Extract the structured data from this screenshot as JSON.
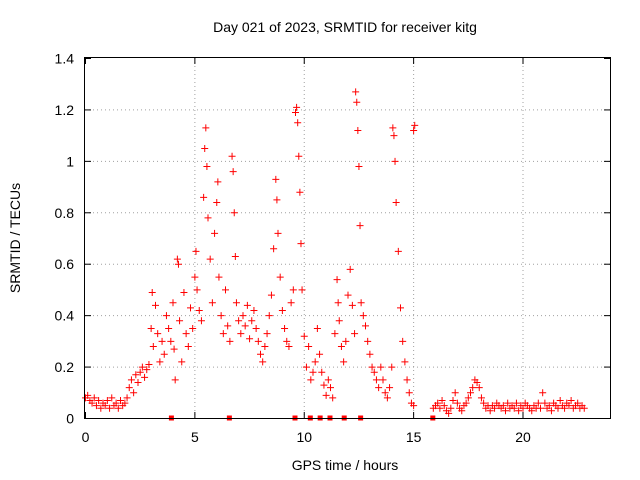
{
  "chart_data": {
    "type": "scatter",
    "title": "Day 021 of 2023, SRMTID for receiver kitg",
    "xlabel": "GPS time / hours",
    "ylabel": "SRMTID / TECUs",
    "xlim": [
      0,
      24
    ],
    "ylim": [
      0,
      1.4
    ],
    "xticks": [
      0,
      5,
      10,
      15,
      20
    ],
    "yticks": [
      0,
      0.2,
      0.4,
      0.6,
      0.8,
      1,
      1.2,
      1.4
    ],
    "ytick_labels": [
      "0",
      "0.2",
      "0.4",
      "0.6",
      "0.8",
      "1",
      "1.2",
      "1.4"
    ],
    "grid": true,
    "marker": "+",
    "color": "#ff0000",
    "series": [
      {
        "name": "SRMTID",
        "points": [
          [
            0.0,
            0.08
          ],
          [
            0.1,
            0.09
          ],
          [
            0.2,
            0.07
          ],
          [
            0.3,
            0.06
          ],
          [
            0.4,
            0.08
          ],
          [
            0.5,
            0.05
          ],
          [
            0.6,
            0.07
          ],
          [
            0.7,
            0.04
          ],
          [
            0.8,
            0.06
          ],
          [
            0.9,
            0.05
          ],
          [
            1.0,
            0.07
          ],
          [
            1.1,
            0.04
          ],
          [
            1.2,
            0.08
          ],
          [
            1.3,
            0.05
          ],
          [
            1.4,
            0.06
          ],
          [
            1.5,
            0.04
          ],
          [
            1.6,
            0.07
          ],
          [
            1.7,
            0.05
          ],
          [
            1.8,
            0.06
          ],
          [
            1.9,
            0.08
          ],
          [
            2.0,
            0.12
          ],
          [
            2.1,
            0.15
          ],
          [
            2.2,
            0.1
          ],
          [
            2.3,
            0.17
          ],
          [
            2.4,
            0.14
          ],
          [
            2.5,
            0.18
          ],
          [
            2.6,
            0.2
          ],
          [
            2.7,
            0.16
          ],
          [
            2.8,
            0.19
          ],
          [
            2.9,
            0.21
          ],
          [
            3.0,
            0.35
          ],
          [
            3.05,
            0.49
          ],
          [
            3.1,
            0.28
          ],
          [
            3.2,
            0.44
          ],
          [
            3.3,
            0.33
          ],
          [
            3.4,
            0.22
          ],
          [
            3.5,
            0.3
          ],
          [
            3.6,
            0.25
          ],
          [
            3.7,
            0.4
          ],
          [
            3.8,
            0.35
          ],
          [
            3.9,
            0.3
          ],
          [
            4.0,
            0.45
          ],
          [
            4.05,
            0.27
          ],
          [
            4.1,
            0.15
          ],
          [
            4.2,
            0.62
          ],
          [
            4.25,
            0.6
          ],
          [
            4.3,
            0.38
          ],
          [
            4.4,
            0.22
          ],
          [
            4.5,
            0.49
          ],
          [
            4.6,
            0.33
          ],
          [
            4.7,
            0.28
          ],
          [
            4.8,
            0.43
          ],
          [
            4.9,
            0.35
          ],
          [
            5.0,
            0.55
          ],
          [
            5.05,
            0.65
          ],
          [
            5.1,
            0.5
          ],
          [
            5.2,
            0.42
          ],
          [
            5.3,
            0.38
          ],
          [
            5.4,
            0.86
          ],
          [
            5.45,
            1.05
          ],
          [
            5.5,
            1.13
          ],
          [
            5.55,
            0.98
          ],
          [
            5.6,
            0.78
          ],
          [
            5.7,
            0.62
          ],
          [
            5.8,
            0.45
          ],
          [
            5.9,
            0.72
          ],
          [
            6.0,
            0.84
          ],
          [
            6.05,
            0.92
          ],
          [
            6.1,
            0.55
          ],
          [
            6.2,
            0.4
          ],
          [
            6.3,
            0.33
          ],
          [
            6.4,
            0.5
          ],
          [
            6.5,
            0.36
          ],
          [
            6.6,
            0.3
          ],
          [
            6.7,
            1.02
          ],
          [
            6.75,
            0.96
          ],
          [
            6.8,
            0.8
          ],
          [
            6.85,
            0.63
          ],
          [
            6.9,
            0.45
          ],
          [
            7.0,
            0.38
          ],
          [
            7.1,
            0.33
          ],
          [
            7.2,
            0.4
          ],
          [
            7.3,
            0.36
          ],
          [
            7.4,
            0.44
          ],
          [
            7.5,
            0.31
          ],
          [
            7.6,
            0.38
          ],
          [
            7.7,
            0.42
          ],
          [
            7.8,
            0.35
          ],
          [
            7.9,
            0.3
          ],
          [
            8.0,
            0.25
          ],
          [
            8.1,
            0.22
          ],
          [
            8.2,
            0.28
          ],
          [
            8.3,
            0.33
          ],
          [
            8.4,
            0.4
          ],
          [
            8.5,
            0.48
          ],
          [
            8.6,
            0.66
          ],
          [
            8.7,
            0.93
          ],
          [
            8.75,
            0.85
          ],
          [
            8.8,
            0.72
          ],
          [
            8.9,
            0.55
          ],
          [
            9.0,
            0.42
          ],
          [
            9.1,
            0.35
          ],
          [
            9.2,
            0.3
          ],
          [
            9.3,
            0.28
          ],
          [
            9.4,
            0.45
          ],
          [
            9.5,
            0.5
          ],
          [
            9.6,
            1.19
          ],
          [
            9.65,
            1.21
          ],
          [
            9.7,
            1.15
          ],
          [
            9.75,
            1.02
          ],
          [
            9.8,
            0.88
          ],
          [
            9.85,
            0.68
          ],
          [
            9.9,
            0.5
          ],
          [
            10.0,
            0.32
          ],
          [
            10.1,
            0.2
          ],
          [
            10.2,
            0.28
          ],
          [
            10.3,
            0.15
          ],
          [
            10.4,
            0.18
          ],
          [
            10.5,
            0.22
          ],
          [
            10.6,
            0.35
          ],
          [
            10.7,
            0.25
          ],
          [
            10.8,
            0.18
          ],
          [
            10.9,
            0.13
          ],
          [
            11.0,
            0.09
          ],
          [
            11.1,
            0.15
          ],
          [
            11.2,
            0.12
          ],
          [
            11.3,
            0.08
          ],
          [
            11.4,
            0.33
          ],
          [
            11.5,
            0.54
          ],
          [
            11.55,
            0.45
          ],
          [
            11.6,
            0.38
          ],
          [
            11.7,
            0.28
          ],
          [
            11.8,
            0.22
          ],
          [
            11.9,
            0.3
          ],
          [
            12.0,
            0.48
          ],
          [
            12.1,
            0.58
          ],
          [
            12.2,
            0.44
          ],
          [
            12.3,
            0.33
          ],
          [
            12.35,
            1.27
          ],
          [
            12.4,
            1.23
          ],
          [
            12.45,
            1.12
          ],
          [
            12.5,
            0.98
          ],
          [
            12.55,
            0.75
          ],
          [
            12.6,
            0.45
          ],
          [
            12.7,
            0.4
          ],
          [
            12.8,
            0.36
          ],
          [
            12.9,
            0.3
          ],
          [
            13.0,
            0.25
          ],
          [
            13.1,
            0.2
          ],
          [
            13.2,
            0.18
          ],
          [
            13.3,
            0.15
          ],
          [
            13.4,
            0.12
          ],
          [
            13.5,
            0.2
          ],
          [
            13.6,
            0.15
          ],
          [
            13.7,
            0.1
          ],
          [
            13.8,
            0.08
          ],
          [
            13.9,
            0.12
          ],
          [
            14.0,
            0.2
          ],
          [
            14.05,
            1.13
          ],
          [
            14.1,
            1.1
          ],
          [
            14.15,
            1.0
          ],
          [
            14.2,
            0.84
          ],
          [
            14.3,
            0.65
          ],
          [
            14.4,
            0.43
          ],
          [
            14.5,
            0.3
          ],
          [
            14.6,
            0.22
          ],
          [
            14.7,
            0.15
          ],
          [
            14.8,
            0.1
          ],
          [
            14.9,
            0.06
          ],
          [
            15.0,
            0.05
          ],
          [
            15.0,
            1.12
          ],
          [
            15.05,
            1.14
          ],
          [
            15.9,
            0.04
          ],
          [
            16.0,
            0.05
          ],
          [
            16.1,
            0.06
          ],
          [
            16.2,
            0.04
          ],
          [
            16.3,
            0.07
          ],
          [
            16.4,
            0.05
          ],
          [
            16.5,
            0.03
          ],
          [
            16.6,
            0.02
          ],
          [
            16.7,
            0.04
          ],
          [
            16.8,
            0.07
          ],
          [
            16.9,
            0.1
          ],
          [
            17.0,
            0.06
          ],
          [
            17.1,
            0.04
          ],
          [
            17.2,
            0.03
          ],
          [
            17.3,
            0.05
          ],
          [
            17.4,
            0.06
          ],
          [
            17.5,
            0.08
          ],
          [
            17.6,
            0.1
          ],
          [
            17.7,
            0.12
          ],
          [
            17.8,
            0.15
          ],
          [
            17.9,
            0.14
          ],
          [
            18.0,
            0.12
          ],
          [
            18.1,
            0.08
          ],
          [
            18.2,
            0.06
          ],
          [
            18.3,
            0.04
          ],
          [
            18.4,
            0.05
          ],
          [
            18.5,
            0.03
          ],
          [
            18.6,
            0.05
          ],
          [
            18.7,
            0.04
          ],
          [
            18.8,
            0.06
          ],
          [
            18.9,
            0.05
          ],
          [
            19.0,
            0.04
          ],
          [
            19.1,
            0.05
          ],
          [
            19.2,
            0.03
          ],
          [
            19.3,
            0.06
          ],
          [
            19.4,
            0.04
          ],
          [
            19.5,
            0.05
          ],
          [
            19.6,
            0.04
          ],
          [
            19.7,
            0.06
          ],
          [
            19.8,
            0.03
          ],
          [
            19.9,
            0.05
          ],
          [
            20.0,
            0.04
          ],
          [
            20.1,
            0.06
          ],
          [
            20.2,
            0.05
          ],
          [
            20.3,
            0.04
          ],
          [
            20.4,
            0.03
          ],
          [
            20.5,
            0.05
          ],
          [
            20.6,
            0.04
          ],
          [
            20.7,
            0.06
          ],
          [
            20.8,
            0.04
          ],
          [
            20.9,
            0.1
          ],
          [
            21.0,
            0.06
          ],
          [
            21.1,
            0.04
          ],
          [
            21.2,
            0.05
          ],
          [
            21.3,
            0.03
          ],
          [
            21.4,
            0.06
          ],
          [
            21.5,
            0.05
          ],
          [
            21.6,
            0.04
          ],
          [
            21.7,
            0.07
          ],
          [
            21.8,
            0.05
          ],
          [
            21.9,
            0.04
          ],
          [
            22.0,
            0.06
          ],
          [
            22.1,
            0.05
          ],
          [
            22.2,
            0.07
          ],
          [
            22.3,
            0.04
          ],
          [
            22.4,
            0.05
          ],
          [
            22.5,
            0.06
          ],
          [
            22.6,
            0.04
          ],
          [
            22.7,
            0.05
          ],
          [
            22.8,
            0.04
          ]
        ]
      }
    ],
    "gap_markers_x": [
      3.95,
      6.6,
      9.6,
      10.3,
      10.75,
      11.2,
      11.85,
      12.6,
      15.9
    ]
  }
}
